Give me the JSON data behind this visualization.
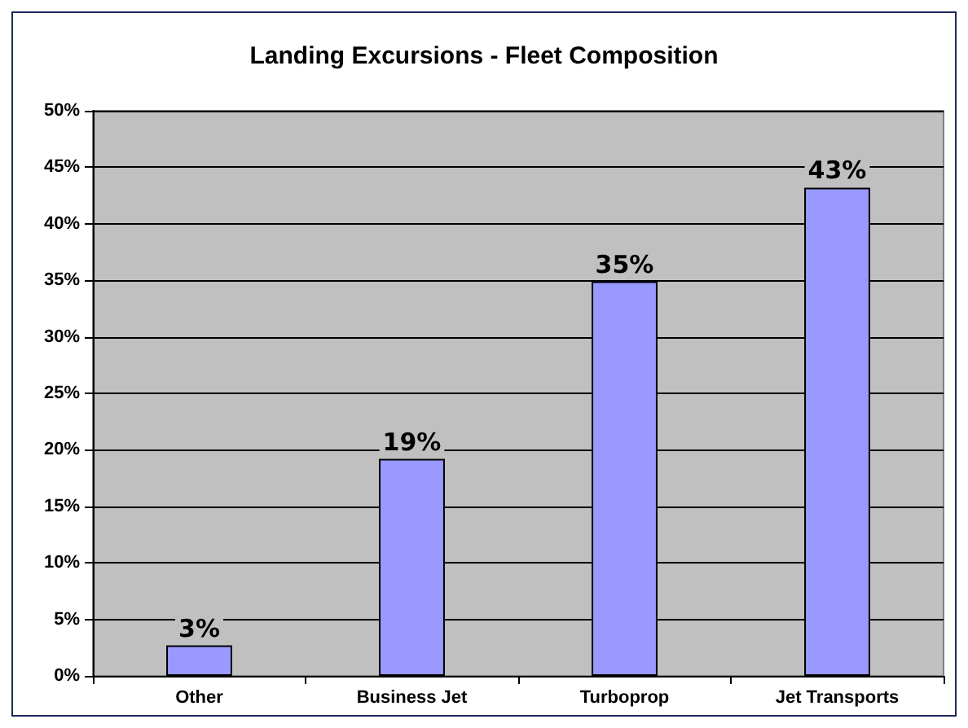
{
  "chart_data": {
    "type": "bar",
    "title": "Landing Excursions - Fleet Composition",
    "categories": [
      "Other",
      "Business Jet",
      "Turboprop",
      "Jet Transports"
    ],
    "values": [
      2.7,
      19.2,
      34.9,
      43.2
    ],
    "value_labels": [
      "3%",
      "19%",
      "35%",
      "43%"
    ],
    "color": "#9999ff",
    "ylim": [
      0,
      50
    ],
    "yticks": [
      {
        "value": 0,
        "label": "0%"
      },
      {
        "value": 5,
        "label": "5%"
      },
      {
        "value": 10,
        "label": "10%"
      },
      {
        "value": 15,
        "label": "15%"
      },
      {
        "value": 20,
        "label": "20%"
      },
      {
        "value": 25,
        "label": "25%"
      },
      {
        "value": 30,
        "label": "30%"
      },
      {
        "value": 35,
        "label": "35%"
      },
      {
        "value": 40,
        "label": "40%"
      },
      {
        "value": 45,
        "label": "45%"
      },
      {
        "value": 50,
        "label": "50%"
      }
    ],
    "grid": "y"
  }
}
